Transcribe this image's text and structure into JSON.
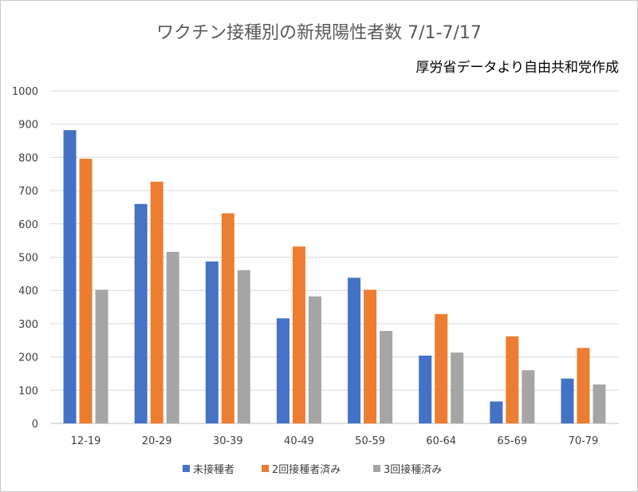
{
  "chart_data": {
    "type": "bar",
    "title": "ワクチン接種別の新規陽性者数 7/1-7/17",
    "subtitle": "厚労省データより自由共和党作成",
    "categories": [
      "12-19",
      "20-29",
      "30-39",
      "40-49",
      "50-59",
      "60-64",
      "65-69",
      "70-79"
    ],
    "series": [
      {
        "name": "未接種者",
        "color": "#4472c4",
        "values": [
          882,
          660,
          487,
          316,
          438,
          204,
          66,
          135
        ]
      },
      {
        "name": "2回接種者済み",
        "color": "#ed7d31",
        "values": [
          796,
          727,
          632,
          532,
          402,
          329,
          262,
          227
        ]
      },
      {
        "name": "3回接種済み",
        "color": "#a5a5a5",
        "values": [
          402,
          516,
          461,
          382,
          278,
          213,
          160,
          117
        ]
      }
    ],
    "ylim": [
      0,
      1000
    ],
    "yticks": [
      0,
      100,
      200,
      300,
      400,
      500,
      600,
      700,
      800,
      900,
      1000
    ],
    "grid": true,
    "legend_position": "bottom"
  }
}
